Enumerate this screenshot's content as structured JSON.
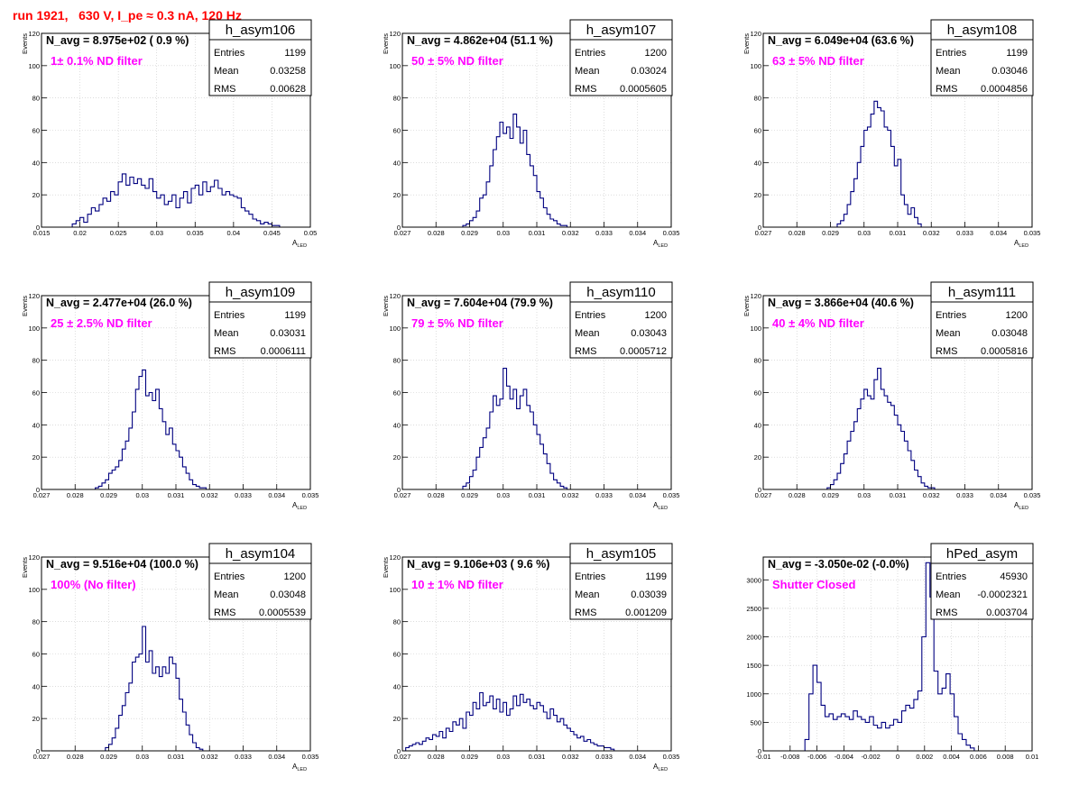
{
  "title": "run 1921,   630 V, I_pe ≈ 0.3 nA, 120 Hz",
  "colors": {
    "title": "#ff0000",
    "annotation": "#ff00ff",
    "histogram_line": "#000080"
  },
  "chart_data": [
    {
      "type": "histogram",
      "name": "h_asym106",
      "stats": {
        "entries": "1199",
        "mean": "0.03258",
        "rms": "0.00628"
      },
      "n_avg_label": "N_avg = 8.975e+02 ( 0.9 %)",
      "annotation": "1± 0.1% ND filter",
      "xlabel_main": "A",
      "xlabel_sub": "LED",
      "ylabel": "Events",
      "xlim": [
        0.015,
        0.05
      ],
      "ylim": [
        0,
        120
      ],
      "xticks": [
        "0.015",
        "0.02",
        "0.025",
        "0.03",
        "0.035",
        "0.04",
        "0.045",
        "0.05"
      ],
      "yticks": [
        "0",
        "20",
        "40",
        "60",
        "80",
        "100",
        "120"
      ],
      "x": [
        0.019,
        0.0195,
        0.02,
        0.0205,
        0.021,
        0.0215,
        0.022,
        0.0225,
        0.023,
        0.0235,
        0.024,
        0.0245,
        0.025,
        0.0255,
        0.026,
        0.0265,
        0.027,
        0.0275,
        0.028,
        0.0285,
        0.029,
        0.0295,
        0.03,
        0.0305,
        0.031,
        0.0315,
        0.032,
        0.0325,
        0.033,
        0.0335,
        0.034,
        0.0345,
        0.035,
        0.0355,
        0.036,
        0.0365,
        0.037,
        0.0375,
        0.038,
        0.0385,
        0.039,
        0.0395,
        0.04,
        0.0405,
        0.041,
        0.0415,
        0.042,
        0.0425,
        0.043,
        0.0435,
        0.044,
        0.0445,
        0.045,
        0.0455
      ],
      "values": [
        2,
        4,
        6,
        3,
        8,
        12,
        10,
        14,
        18,
        16,
        22,
        20,
        28,
        33,
        26,
        31,
        27,
        30,
        26,
        24,
        30,
        22,
        18,
        20,
        14,
        16,
        20,
        12,
        18,
        22,
        15,
        24,
        26,
        20,
        28,
        22,
        25,
        29,
        24,
        20,
        22,
        20,
        19,
        18,
        12,
        10,
        8,
        5,
        4,
        2,
        3,
        2,
        1,
        1
      ]
    },
    {
      "type": "histogram",
      "name": "h_asym107",
      "stats": {
        "entries": "1200",
        "mean": "0.03024",
        "rms": "0.0005605"
      },
      "n_avg_label": "N_avg = 4.862e+04 (51.1 %)",
      "annotation": "50 ± 5% ND filter",
      "xlabel_main": "A",
      "xlabel_sub": "LED",
      "ylabel": "Events",
      "xlim": [
        0.027,
        0.035
      ],
      "ylim": [
        0,
        120
      ],
      "xticks": [
        "0.027",
        "0.028",
        "0.029",
        "0.03",
        "0.031",
        "0.032",
        "0.033",
        "0.034",
        "0.035"
      ],
      "yticks": [
        "0",
        "20",
        "40",
        "60",
        "80",
        "100",
        "120"
      ],
      "x": [
        0.0288,
        0.0289,
        0.029,
        0.0291,
        0.0292,
        0.0293,
        0.0294,
        0.0295,
        0.0296,
        0.0297,
        0.0298,
        0.0299,
        0.03,
        0.0301,
        0.0302,
        0.0303,
        0.0304,
        0.0305,
        0.0306,
        0.0307,
        0.0308,
        0.0309,
        0.031,
        0.0311,
        0.0312,
        0.0313,
        0.0314,
        0.0315,
        0.0316,
        0.0317,
        0.0318
      ],
      "values": [
        1,
        2,
        4,
        6,
        10,
        18,
        20,
        28,
        38,
        48,
        56,
        65,
        58,
        62,
        55,
        70,
        62,
        52,
        60,
        45,
        38,
        32,
        22,
        18,
        12,
        8,
        5,
        4,
        2,
        1,
        1
      ]
    },
    {
      "type": "histogram",
      "name": "h_asym108",
      "stats": {
        "entries": "1199",
        "mean": "0.03046",
        "rms": "0.0004856"
      },
      "n_avg_label": "N_avg = 6.049e+04 (63.6 %)",
      "annotation": "63 ± 5% ND filter",
      "xlabel_main": "A",
      "xlabel_sub": "LED",
      "ylabel": "Events",
      "xlim": [
        0.027,
        0.035
      ],
      "ylim": [
        0,
        120
      ],
      "xticks": [
        "0.027",
        "0.028",
        "0.029",
        "0.03",
        "0.031",
        "0.032",
        "0.033",
        "0.034",
        "0.035"
      ],
      "yticks": [
        "0",
        "20",
        "40",
        "60",
        "80",
        "100",
        "120"
      ],
      "x": [
        0.0292,
        0.0293,
        0.0294,
        0.0295,
        0.0296,
        0.0297,
        0.0298,
        0.0299,
        0.03,
        0.0301,
        0.0302,
        0.0303,
        0.0304,
        0.0305,
        0.0306,
        0.0307,
        0.0308,
        0.0309,
        0.031,
        0.0311,
        0.0312,
        0.0313,
        0.0314,
        0.0315,
        0.0316
      ],
      "values": [
        2,
        4,
        8,
        14,
        22,
        30,
        40,
        50,
        60,
        62,
        70,
        78,
        74,
        72,
        62,
        60,
        50,
        38,
        42,
        20,
        14,
        8,
        12,
        6,
        2
      ]
    },
    {
      "type": "histogram",
      "name": "h_asym109",
      "stats": {
        "entries": "1199",
        "mean": "0.03031",
        "rms": "0.0006111"
      },
      "n_avg_label": "N_avg = 2.477e+04 (26.0 %)",
      "annotation": "25 ± 2.5% ND filter",
      "xlabel_main": "A",
      "xlabel_sub": "LED",
      "ylabel": "Events",
      "xlim": [
        0.027,
        0.035
      ],
      "ylim": [
        0,
        120
      ],
      "xticks": [
        "0.027",
        "0.028",
        "0.029",
        "0.03",
        "0.031",
        "0.032",
        "0.033",
        "0.034",
        "0.035"
      ],
      "yticks": [
        "0",
        "20",
        "40",
        "60",
        "80",
        "100",
        "120"
      ],
      "x": [
        0.0286,
        0.0287,
        0.0288,
        0.0289,
        0.029,
        0.0291,
        0.0292,
        0.0293,
        0.0294,
        0.0295,
        0.0296,
        0.0297,
        0.0298,
        0.0299,
        0.03,
        0.0301,
        0.0302,
        0.0303,
        0.0304,
        0.0305,
        0.0306,
        0.0307,
        0.0308,
        0.0309,
        0.031,
        0.0311,
        0.0312,
        0.0313,
        0.0314,
        0.0315,
        0.0316,
        0.0317,
        0.0318
      ],
      "values": [
        1,
        2,
        4,
        6,
        10,
        12,
        14,
        18,
        25,
        30,
        38,
        48,
        62,
        70,
        74,
        58,
        60,
        55,
        62,
        50,
        42,
        34,
        38,
        28,
        24,
        20,
        14,
        10,
        6,
        3,
        2,
        1,
        1
      ]
    },
    {
      "type": "histogram",
      "name": "h_asym110",
      "stats": {
        "entries": "1200",
        "mean": "0.03043",
        "rms": "0.0005712"
      },
      "n_avg_label": "N_avg = 7.604e+04 (79.9 %)",
      "annotation": "79 ± 5% ND filter",
      "xlabel_main": "A",
      "xlabel_sub": "LED",
      "ylabel": "Events",
      "xlim": [
        0.027,
        0.035
      ],
      "ylim": [
        0,
        120
      ],
      "xticks": [
        "0.027",
        "0.028",
        "0.029",
        "0.03",
        "0.031",
        "0.032",
        "0.033",
        "0.034",
        "0.035"
      ],
      "yticks": [
        "0",
        "20",
        "40",
        "60",
        "80",
        "100",
        "120"
      ],
      "x": [
        0.0288,
        0.0289,
        0.029,
        0.0291,
        0.0292,
        0.0293,
        0.0294,
        0.0295,
        0.0296,
        0.0297,
        0.0298,
        0.0299,
        0.03,
        0.0301,
        0.0302,
        0.0303,
        0.0304,
        0.0305,
        0.0306,
        0.0307,
        0.0308,
        0.0309,
        0.031,
        0.0311,
        0.0312,
        0.0313,
        0.0314,
        0.0315,
        0.0316,
        0.0317,
        0.0318
      ],
      "values": [
        2,
        4,
        8,
        12,
        20,
        26,
        32,
        38,
        48,
        58,
        52,
        56,
        75,
        64,
        56,
        62,
        50,
        58,
        62,
        52,
        48,
        40,
        34,
        28,
        22,
        16,
        10,
        6,
        4,
        2,
        1
      ]
    },
    {
      "type": "histogram",
      "name": "h_asym111",
      "stats": {
        "entries": "1200",
        "mean": "0.03048",
        "rms": "0.0005816"
      },
      "n_avg_label": "N_avg = 3.866e+04 (40.6 %)",
      "annotation": "40 ± 4% ND filter",
      "xlabel_main": "A",
      "xlabel_sub": "LED",
      "ylabel": "Events",
      "xlim": [
        0.027,
        0.035
      ],
      "ylim": [
        0,
        120
      ],
      "xticks": [
        "0.027",
        "0.028",
        "0.029",
        "0.03",
        "0.031",
        "0.032",
        "0.033",
        "0.034",
        "0.035"
      ],
      "yticks": [
        "0",
        "20",
        "40",
        "60",
        "80",
        "100",
        "120"
      ],
      "x": [
        0.0289,
        0.029,
        0.0291,
        0.0292,
        0.0293,
        0.0294,
        0.0295,
        0.0296,
        0.0297,
        0.0298,
        0.0299,
        0.03,
        0.0301,
        0.0302,
        0.0303,
        0.0304,
        0.0305,
        0.0306,
        0.0307,
        0.0308,
        0.0309,
        0.031,
        0.0311,
        0.0312,
        0.0313,
        0.0314,
        0.0315,
        0.0316,
        0.0317,
        0.0318,
        0.0319,
        0.032
      ],
      "values": [
        1,
        3,
        6,
        10,
        16,
        22,
        30,
        36,
        42,
        50,
        56,
        62,
        58,
        56,
        68,
        75,
        62,
        58,
        54,
        52,
        46,
        40,
        36,
        30,
        24,
        18,
        12,
        8,
        4,
        2,
        1,
        1
      ]
    },
    {
      "type": "histogram",
      "name": "h_asym104",
      "stats": {
        "entries": "1200",
        "mean": "0.03048",
        "rms": "0.0005539"
      },
      "n_avg_label": "N_avg = 9.516e+04 (100.0 %)",
      "annotation": "100% (No filter)",
      "xlabel_main": "A",
      "xlabel_sub": "LED",
      "ylabel": "Events",
      "xlim": [
        0.027,
        0.035
      ],
      "ylim": [
        0,
        120
      ],
      "xticks": [
        "0.027",
        "0.028",
        "0.029",
        "0.03",
        "0.031",
        "0.032",
        "0.033",
        "0.034",
        "0.035"
      ],
      "yticks": [
        "0",
        "20",
        "40",
        "60",
        "80",
        "100",
        "120"
      ],
      "x": [
        0.0289,
        0.029,
        0.0291,
        0.0292,
        0.0293,
        0.0294,
        0.0295,
        0.0296,
        0.0297,
        0.0298,
        0.0299,
        0.03,
        0.0301,
        0.0302,
        0.0303,
        0.0304,
        0.0305,
        0.0306,
        0.0307,
        0.0308,
        0.0309,
        0.031,
        0.0311,
        0.0312,
        0.0313,
        0.0314,
        0.0315,
        0.0316,
        0.0317
      ],
      "values": [
        2,
        4,
        8,
        14,
        22,
        28,
        36,
        42,
        55,
        58,
        60,
        77,
        55,
        62,
        48,
        52,
        46,
        52,
        48,
        58,
        54,
        45,
        32,
        24,
        16,
        10,
        5,
        2,
        1
      ]
    },
    {
      "type": "histogram",
      "name": "h_asym105",
      "stats": {
        "entries": "1199",
        "mean": "0.03039",
        "rms": "0.001209"
      },
      "n_avg_label": "N_avg = 9.106e+03 ( 9.6 %)",
      "annotation": "10 ± 1% ND filter",
      "xlabel_main": "A",
      "xlabel_sub": "LED",
      "ylabel": "Events",
      "xlim": [
        0.027,
        0.035
      ],
      "ylim": [
        0,
        120
      ],
      "xticks": [
        "0.027",
        "0.028",
        "0.029",
        "0.03",
        "0.031",
        "0.032",
        "0.033",
        "0.034",
        "0.035"
      ],
      "yticks": [
        "0",
        "20",
        "40",
        "60",
        "80",
        "100",
        "120"
      ],
      "x": [
        0.0271,
        0.0272,
        0.0273,
        0.0274,
        0.0275,
        0.0276,
        0.0277,
        0.0278,
        0.0279,
        0.028,
        0.0281,
        0.0282,
        0.0283,
        0.0284,
        0.0285,
        0.0286,
        0.0287,
        0.0288,
        0.0289,
        0.029,
        0.0291,
        0.0292,
        0.0293,
        0.0294,
        0.0295,
        0.0296,
        0.0297,
        0.0298,
        0.0299,
        0.03,
        0.0301,
        0.0302,
        0.0303,
        0.0304,
        0.0305,
        0.0306,
        0.0307,
        0.0308,
        0.0309,
        0.031,
        0.0311,
        0.0312,
        0.0313,
        0.0314,
        0.0315,
        0.0316,
        0.0317,
        0.0318,
        0.0319,
        0.032,
        0.0321,
        0.0322,
        0.0323,
        0.0324,
        0.0325,
        0.0326,
        0.0327,
        0.0328,
        0.0329,
        0.033,
        0.0331,
        0.0332
      ],
      "values": [
        2,
        3,
        4,
        5,
        4,
        6,
        8,
        7,
        10,
        9,
        12,
        8,
        14,
        12,
        18,
        16,
        20,
        14,
        24,
        22,
        30,
        26,
        36,
        28,
        30,
        34,
        26,
        32,
        24,
        30,
        22,
        26,
        34,
        28,
        35,
        30,
        32,
        28,
        26,
        30,
        28,
        24,
        20,
        26,
        22,
        18,
        20,
        16,
        14,
        12,
        10,
        8,
        9,
        6,
        7,
        5,
        4,
        3,
        3,
        2,
        2,
        1
      ]
    },
    {
      "type": "histogram",
      "name": "hPed_asym",
      "stats": {
        "entries": "45930",
        "mean": "-0.0002321",
        "rms": "0.003704"
      },
      "n_avg_label": "N_avg = -3.050e-02 (-0.0%)",
      "annotation": "Shutter Closed",
      "xlabel_main": "",
      "xlabel_sub": "",
      "ylabel": "",
      "xlim": [
        -0.01,
        0.01
      ],
      "ylim": [
        0,
        3400
      ],
      "xticks": [
        "-0.01",
        "-0.008",
        "-0.006",
        "-0.004",
        "-0.002",
        "0",
        "0.002",
        "0.004",
        "0.006",
        "0.008",
        "0.01"
      ],
      "yticks": [
        "0",
        "500",
        "1000",
        "1500",
        "2000",
        "2500",
        "3000"
      ],
      "x": [
        -0.0069,
        -0.0066,
        -0.0063,
        -0.006,
        -0.0057,
        -0.0054,
        -0.0051,
        -0.0048,
        -0.0045,
        -0.0042,
        -0.0039,
        -0.0036,
        -0.0033,
        -0.003,
        -0.0027,
        -0.0024,
        -0.0021,
        -0.0018,
        -0.0015,
        -0.0012,
        -0.0009,
        -0.0006,
        -0.0003,
        0.0,
        0.0003,
        0.0006,
        0.0009,
        0.0012,
        0.0015,
        0.0018,
        0.0021,
        0.0024,
        0.0027,
        0.003,
        0.0033,
        0.0036,
        0.0039,
        0.0042,
        0.0045,
        0.0048,
        0.0051,
        0.0054
      ],
      "values": [
        200,
        1000,
        1500,
        1200,
        800,
        600,
        650,
        550,
        600,
        650,
        600,
        550,
        700,
        600,
        550,
        500,
        600,
        450,
        400,
        500,
        400,
        450,
        550,
        500,
        700,
        800,
        750,
        900,
        1050,
        2000,
        3300,
        2700,
        1400,
        1000,
        1100,
        1350,
        1000,
        600,
        300,
        200,
        100,
        50
      ]
    }
  ]
}
